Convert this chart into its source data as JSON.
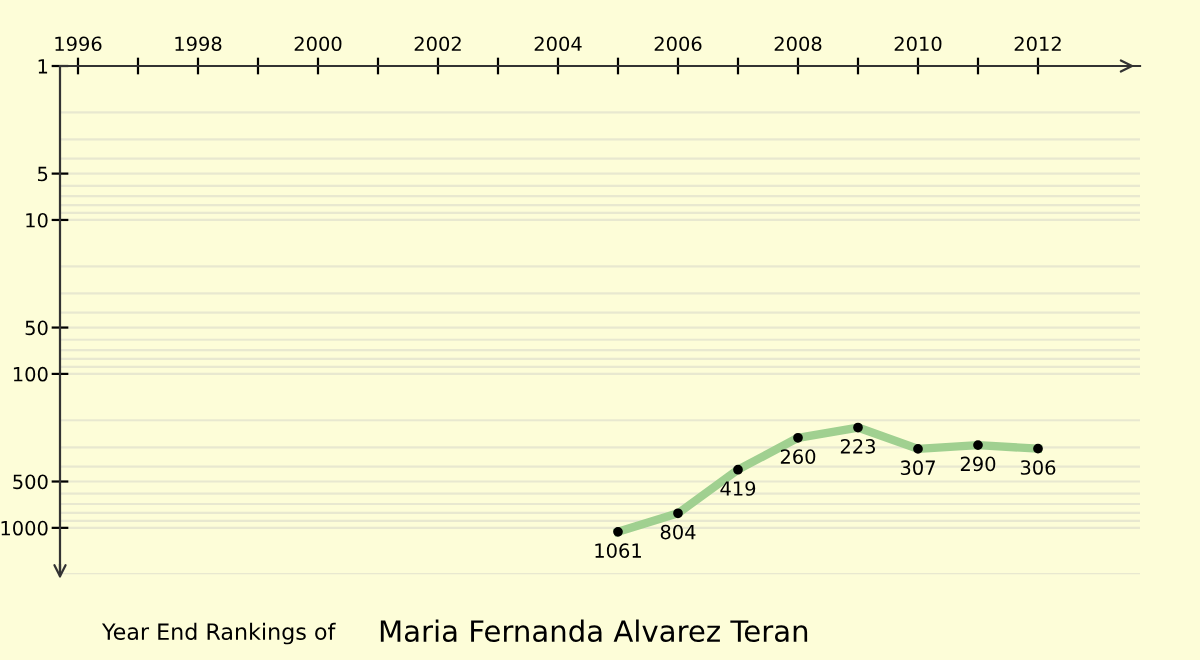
{
  "chart_data": {
    "type": "line",
    "title": "Year End Rankings of",
    "subtitle": "Maria Fernanda Alvarez Teran",
    "x": [
      2005,
      2006,
      2007,
      2008,
      2009,
      2010,
      2011,
      2012
    ],
    "series": [
      {
        "color": "#a0d090",
        "values": [
          1061,
          804,
          419,
          260,
          223,
          307,
          290,
          306
        ]
      }
    ],
    "data_labels": true,
    "marker": "circle",
    "line_style": "solid",
    "log": "y",
    "xlim": [
      1995.7,
      2013.7
    ],
    "ylim": [
      2000,
      1
    ],
    "xticks": [
      1996,
      {
        "value": 1997,
        "label": null
      },
      1998,
      {
        "value": 1999,
        "label": null
      },
      2000,
      {
        "value": 2001,
        "label": null
      },
      2002,
      {
        "value": 2003,
        "label": null
      },
      2004,
      {
        "value": 2005,
        "label": null
      },
      2006,
      {
        "value": 2007,
        "label": null
      },
      2008,
      {
        "value": 2009,
        "label": null
      },
      2010,
      {
        "value": 2011,
        "label": null
      },
      2012
    ],
    "yticks": [
      1,
      5,
      10,
      50,
      100,
      500,
      1000
    ],
    "grid": "y"
  }
}
